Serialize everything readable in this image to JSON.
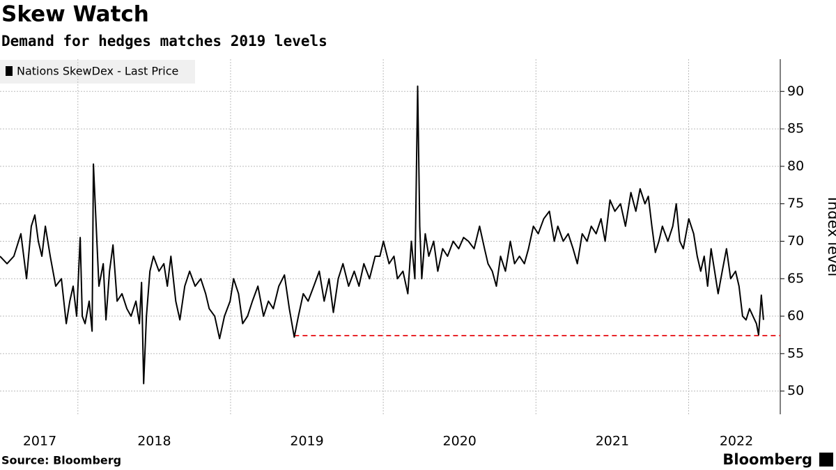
{
  "chart_data": {
    "type": "line",
    "title": "Skew Watch",
    "subtitle": "Demand for hedges matches 2019 levels",
    "ylabel": "Index level",
    "source": "Source: Bloomberg",
    "logo": "Bloomberg",
    "xlim": [
      2016.99,
      2022.1
    ],
    "xticks": [
      2017,
      2018,
      2019,
      2020,
      2021,
      2022
    ],
    "xgrid": [
      2017.5,
      2018.5,
      2019.5,
      2020.5,
      2021.5
    ],
    "ylim": [
      46.9,
      94.3
    ],
    "yticks": [
      50,
      55,
      60,
      65,
      70,
      75,
      80,
      85,
      90
    ],
    "grid": true,
    "legend": "top-left",
    "reference_line": {
      "value": 57.4,
      "x_start": 2018.917,
      "color": "#e8262b"
    },
    "series": [
      {
        "name": "Nations SkewDex - Last Price",
        "color": "#000000",
        "x": [
          2016.99,
          2017.036,
          2017.081,
          2017.127,
          2017.164,
          2017.195,
          2017.218,
          2017.241,
          2017.264,
          2017.287,
          2017.319,
          2017.355,
          2017.392,
          2017.424,
          2017.447,
          2017.469,
          2017.492,
          2017.515,
          2017.529,
          2017.547,
          2017.574,
          2017.593,
          2017.602,
          2017.62,
          2017.638,
          2017.666,
          2017.684,
          2017.707,
          2017.73,
          2017.757,
          2017.789,
          2017.821,
          2017.848,
          2017.88,
          2017.903,
          2017.917,
          2017.931,
          2017.949,
          2017.972,
          2017.995,
          2018.031,
          2018.063,
          2018.086,
          2018.109,
          2018.141,
          2018.168,
          2018.2,
          2018.232,
          2018.268,
          2018.305,
          2018.337,
          2018.36,
          2018.396,
          2018.428,
          2018.46,
          2018.497,
          2018.52,
          2018.552,
          2018.579,
          2018.611,
          2018.643,
          2018.679,
          2018.716,
          2018.748,
          2018.78,
          2018.816,
          2018.853,
          2018.885,
          2018.917,
          2018.944,
          2018.976,
          2019.008,
          2019.045,
          2019.081,
          2019.113,
          2019.145,
          2019.173,
          2019.205,
          2019.236,
          2019.273,
          2019.31,
          2019.341,
          2019.373,
          2019.41,
          2019.447,
          2019.478,
          2019.501,
          2019.538,
          2019.57,
          2019.593,
          2019.629,
          2019.661,
          2019.684,
          2019.707,
          2019.725,
          2019.739,
          2019.752,
          2019.775,
          2019.798,
          2019.83,
          2019.857,
          2019.889,
          2019.921,
          2019.958,
          2019.994,
          2020.026,
          2020.058,
          2020.095,
          2020.131,
          2020.163,
          2020.186,
          2020.214,
          2020.241,
          2020.268,
          2020.3,
          2020.332,
          2020.36,
          2020.392,
          2020.424,
          2020.451,
          2020.483,
          2020.515,
          2020.551,
          2020.588,
          2020.62,
          2020.643,
          2020.679,
          2020.711,
          2020.743,
          2020.771,
          2020.803,
          2020.835,
          2020.862,
          2020.894,
          2020.926,
          2020.953,
          2020.985,
          2021.017,
          2021.054,
          2021.086,
          2021.122,
          2021.154,
          2021.182,
          2021.214,
          2021.236,
          2021.259,
          2021.282,
          2021.305,
          2021.328,
          2021.364,
          2021.396,
          2021.419,
          2021.442,
          2021.465,
          2021.501,
          2021.533,
          2021.556,
          2021.579,
          2021.602,
          2021.624,
          2021.647,
          2021.67,
          2021.693,
          2021.72,
          2021.748,
          2021.775,
          2021.807,
          2021.83,
          2021.853,
          2021.876,
          2021.899,
          2021.921,
          2021.944,
          2021.958,
          2021.976,
          2021.99
        ],
        "values": [
          68,
          67,
          68,
          71,
          65,
          72,
          73.5,
          70,
          68,
          72,
          68,
          64,
          65,
          59,
          62,
          64,
          60,
          70.5,
          60,
          59,
          62,
          58,
          80.3,
          72,
          64,
          67,
          59.5,
          66,
          69.5,
          62,
          63,
          61,
          60,
          62,
          59,
          64.5,
          51,
          60,
          66,
          68,
          66,
          67,
          64,
          68,
          62,
          59.5,
          64,
          66,
          64,
          65,
          63,
          61,
          60,
          57,
          60,
          62,
          65,
          63,
          59,
          60,
          62,
          64,
          60,
          62,
          61,
          64,
          65.5,
          61,
          57.2,
          60,
          63,
          62,
          64,
          66,
          62,
          65,
          60.5,
          65,
          67,
          64,
          66,
          64,
          67,
          65,
          68,
          68,
          70,
          67,
          68,
          65,
          66,
          63,
          70,
          65,
          90.7,
          72,
          65,
          71,
          68,
          70,
          66,
          69,
          68,
          70,
          69,
          70.5,
          70,
          69,
          72,
          69,
          67,
          66,
          64,
          68,
          66,
          70,
          67,
          68,
          67,
          69,
          72,
          71,
          73,
          74,
          70,
          72,
          70,
          71,
          69,
          67,
          71,
          70,
          72,
          71,
          73,
          70,
          75.5,
          74,
          75,
          72,
          76.5,
          74,
          77,
          75,
          76,
          72,
          68.5,
          70,
          72,
          70,
          72,
          75,
          70,
          69,
          73,
          71,
          68,
          66,
          68,
          64,
          69,
          66,
          63,
          66,
          69,
          65,
          66,
          64,
          60,
          59.5,
          61,
          60,
          59,
          57.5,
          62.8,
          59.5
        ]
      }
    ]
  }
}
